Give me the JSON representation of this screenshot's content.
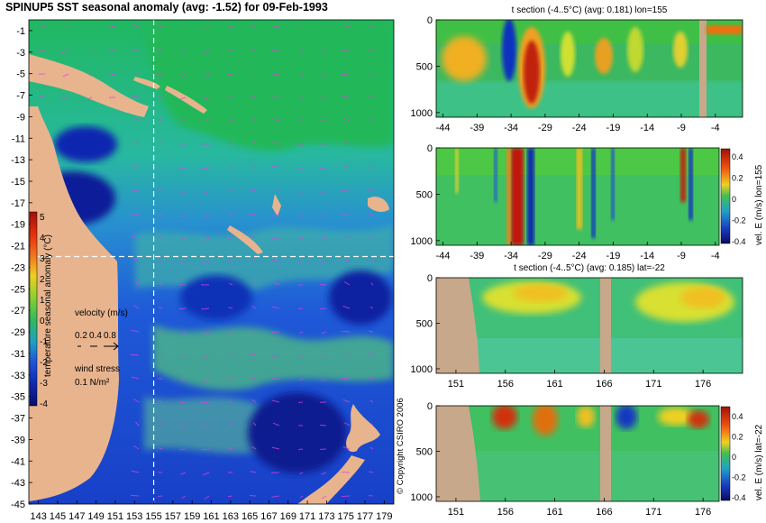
{
  "title": "SPINUP5 SST seasonal anomaly (avg: -1.52) for 09-Feb-1993",
  "copyright": "© Copyright CSIRO 2006",
  "colors": {
    "land": "#e8b48e",
    "section_land": "#c8a88a",
    "ocean_base": "#3fbf5a",
    "neg_deep": "#0b1a8f",
    "pos_hot": "#d42010",
    "vector": "#e040e0",
    "section_line": "#ffffff"
  },
  "chart_data": [
    {
      "type": "heatmap",
      "name_ref": "map",
      "xlabel": "",
      "ylabel": "",
      "x_ticks": [
        "143",
        "145",
        "147",
        "149",
        "151",
        "153",
        "155",
        "157",
        "159",
        "161",
        "163",
        "165",
        "167",
        "169",
        "171",
        "173",
        "175",
        "177",
        "179"
      ],
      "y_ticks": [
        "-1",
        "-3",
        "-5",
        "-7",
        "-9",
        "-11",
        "-13",
        "-15",
        "-17",
        "-19",
        "-21",
        "-23",
        "-25",
        "-27",
        "-29",
        "-31",
        "-33",
        "-35",
        "-37",
        "-39",
        "-41",
        "-43",
        "-45"
      ],
      "xlim": [
        142,
        180
      ],
      "ylim": [
        -45,
        0
      ],
      "section_lon": 155,
      "section_lat": -22,
      "colorbar": {
        "label": "temperature seasonal anomaly (°C)",
        "ticks": [
          "5",
          "4",
          "3",
          "2",
          "1",
          "0",
          "-1",
          "-2",
          "-3",
          "-4"
        ],
        "range": [
          -4,
          5
        ]
      },
      "velocity_key": {
        "label": "velocity (m/s)",
        "values": [
          "0.2",
          "0.4",
          "0.8"
        ]
      },
      "wind_key": {
        "label": "wind stress",
        "value": "0.1 N/m²"
      }
    },
    {
      "type": "heatmap",
      "name_ref": "t-section-lon",
      "title": "t section (-4..5°C) (avg: 0.181) lon=155",
      "x_ticks": [
        "-44",
        "-39",
        "-34",
        "-29",
        "-24",
        "-19",
        "-14",
        "-9",
        "-4"
      ],
      "y_ticks": [
        "0",
        "500",
        "1000"
      ],
      "xlim": [
        -45,
        0
      ],
      "ylim": [
        1050,
        0
      ]
    },
    {
      "type": "heatmap",
      "name_ref": "vel-section-lon",
      "x_ticks": [
        "-44",
        "-39",
        "-34",
        "-29",
        "-24",
        "-19",
        "-14",
        "-9",
        "-4"
      ],
      "y_ticks": [
        "0",
        "500",
        "1000"
      ],
      "xlim": [
        -45,
        0
      ],
      "ylim": [
        1050,
        0
      ],
      "colorbar": {
        "label": "vel. E (m/s) lon=155",
        "ticks": [
          "0.4",
          "0.2",
          "0",
          "-0.2",
          "-0.4"
        ],
        "range": [
          -0.4,
          0.4
        ]
      }
    },
    {
      "type": "heatmap",
      "name_ref": "t-section-lat",
      "title": "t section (-4..5°C) (avg: 0.185) lat=-22",
      "x_ticks": [
        "151",
        "156",
        "161",
        "166",
        "171",
        "176"
      ],
      "y_ticks": [
        "0",
        "500",
        "1000"
      ],
      "xlim": [
        149,
        180
      ],
      "ylim": [
        1050,
        0
      ]
    },
    {
      "type": "heatmap",
      "name_ref": "vel-section-lat",
      "x_ticks": [
        "151",
        "156",
        "161",
        "166",
        "171",
        "176"
      ],
      "y_ticks": [
        "0",
        "500",
        "1000"
      ],
      "xlim": [
        149,
        180
      ],
      "ylim": [
        1050,
        0
      ],
      "colorbar": {
        "label": "vel. E (m/s) lat=-22",
        "ticks": [
          "0.4",
          "0.2",
          "0",
          "-0.2",
          "-0.4"
        ],
        "range": [
          -0.4,
          0.4
        ]
      }
    }
  ]
}
